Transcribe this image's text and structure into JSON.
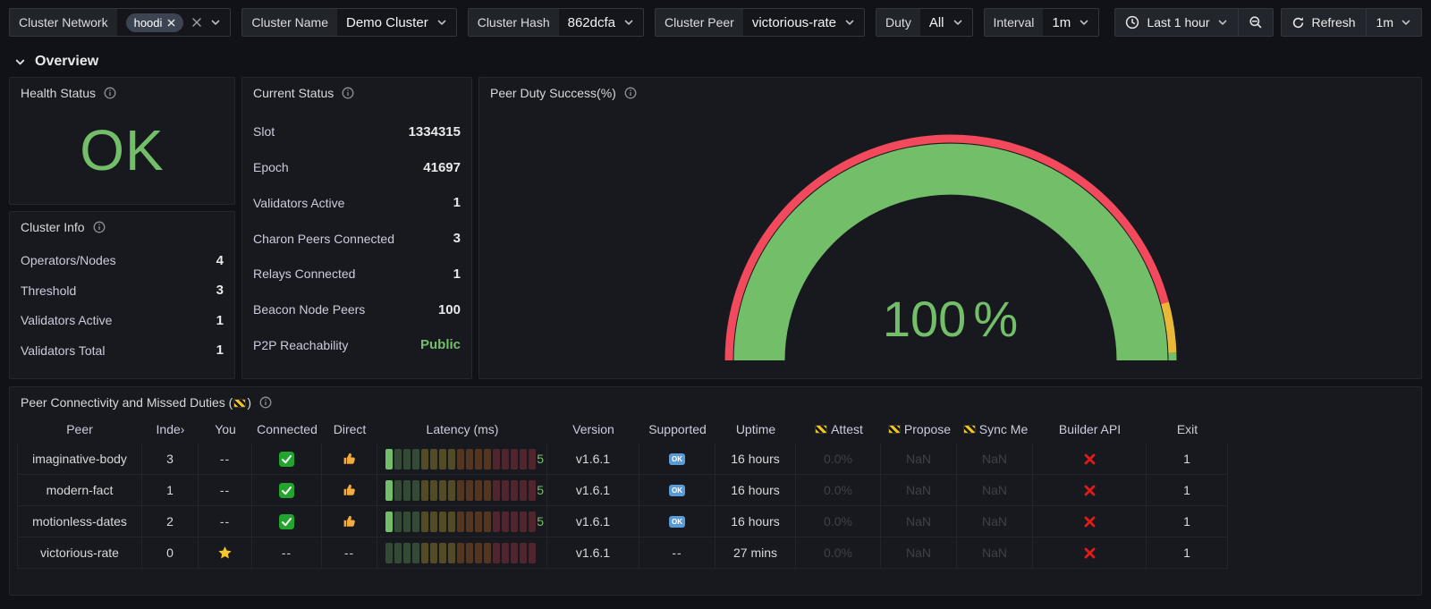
{
  "topbar": {
    "filters": [
      {
        "id": "cluster-network",
        "label": "Cluster Network",
        "type": "tag",
        "tags": [
          "hoodi"
        ]
      },
      {
        "id": "cluster-name",
        "label": "Cluster Name",
        "value": "Demo Cluster"
      },
      {
        "id": "cluster-hash",
        "label": "Cluster Hash",
        "value": "862dcfa"
      },
      {
        "id": "cluster-peer",
        "label": "Cluster Peer",
        "value": "victorious-rate"
      },
      {
        "id": "duty",
        "label": "Duty",
        "value": "All"
      },
      {
        "id": "interval",
        "label": "Interval",
        "value": "1m"
      }
    ],
    "time_picker": {
      "range_label": "Last 1 hour"
    },
    "refresh": {
      "label": "Refresh",
      "interval": "1m"
    }
  },
  "section": {
    "title": "Overview"
  },
  "panels": {
    "health": {
      "title": "Health Status",
      "value": "OK"
    },
    "cluster_info": {
      "title": "Cluster Info",
      "rows": [
        {
          "label": "Operators/Nodes",
          "value": "4"
        },
        {
          "label": "Threshold",
          "value": "3"
        },
        {
          "label": "Validators Active",
          "value": "1"
        },
        {
          "label": "Validators Total",
          "value": "1"
        }
      ]
    },
    "current_status": {
      "title": "Current Status",
      "rows": [
        {
          "label": "Slot",
          "value": "1334315"
        },
        {
          "label": "Epoch",
          "value": "41697"
        },
        {
          "label": "Validators Active",
          "value": "1"
        },
        {
          "label": "Charon Peers Connected",
          "value": "3"
        },
        {
          "label": "Relays Connected",
          "value": "1"
        },
        {
          "label": "Beacon Node Peers",
          "value": "100"
        },
        {
          "label": "P2P Reachability",
          "value": "Public",
          "accent": "green"
        }
      ]
    },
    "gauge": {
      "title": "Peer Duty Success(%)",
      "value": "100",
      "unit": "%"
    },
    "table": {
      "title_before": "Peer Connectivity and Missed Duties (",
      "title_after": ")",
      "columns": [
        {
          "key": "peer",
          "label": "Peer"
        },
        {
          "key": "index",
          "label": "Inde›"
        },
        {
          "key": "you",
          "label": "You"
        },
        {
          "key": "connected",
          "label": "Connected"
        },
        {
          "key": "direct",
          "label": "Direct"
        },
        {
          "key": "latency",
          "label": "Latency (ms)"
        },
        {
          "key": "version",
          "label": "Version"
        },
        {
          "key": "supported",
          "label": "Supported"
        },
        {
          "key": "uptime",
          "label": "Uptime"
        },
        {
          "key": "attest",
          "label": "Attest",
          "hazard": true
        },
        {
          "key": "propose",
          "label": "Propose",
          "hazard": true
        },
        {
          "key": "sync_me",
          "label": "Sync Me",
          "hazard": true
        },
        {
          "key": "builder_api",
          "label": "Builder API"
        },
        {
          "key": "exit",
          "label": "Exit"
        }
      ],
      "rows": [
        {
          "peer": "imaginative-body",
          "index": "3",
          "you": "--",
          "connected": "check",
          "direct": "thumbs-up",
          "latency_value": "5",
          "latency_lit": 1,
          "version": "v1.6.1",
          "supported": "ok",
          "uptime": "16 hours",
          "attest": "0.0%",
          "propose": "NaN",
          "sync_me": "NaN",
          "builder_api": "x",
          "exit": "1"
        },
        {
          "peer": "modern-fact",
          "index": "1",
          "you": "--",
          "connected": "check",
          "direct": "thumbs-up",
          "latency_value": "5",
          "latency_lit": 1,
          "version": "v1.6.1",
          "supported": "ok",
          "uptime": "16 hours",
          "attest": "0.0%",
          "propose": "NaN",
          "sync_me": "NaN",
          "builder_api": "x",
          "exit": "1"
        },
        {
          "peer": "motionless-dates",
          "index": "2",
          "you": "--",
          "connected": "check",
          "direct": "thumbs-up",
          "latency_value": "5",
          "latency_lit": 1,
          "version": "v1.6.1",
          "supported": "ok",
          "uptime": "16 hours",
          "attest": "0.0%",
          "propose": "NaN",
          "sync_me": "NaN",
          "builder_api": "x",
          "exit": "1"
        },
        {
          "peer": "victorious-rate",
          "index": "0",
          "you": "star",
          "connected": "--",
          "direct": "--",
          "latency_value": "",
          "latency_lit": 0,
          "version": "v1.6.1",
          "supported": "--",
          "uptime": "27 mins",
          "attest": "0.0%",
          "propose": "NaN",
          "sync_me": "NaN",
          "builder_api": "x",
          "exit": "1"
        }
      ]
    }
  },
  "icons": {
    "ok_text": "OK"
  },
  "colors": {
    "green": "#73bf69",
    "red": "#f2495c",
    "yellow": "#eab839",
    "gauge_text": "#73bf69"
  }
}
